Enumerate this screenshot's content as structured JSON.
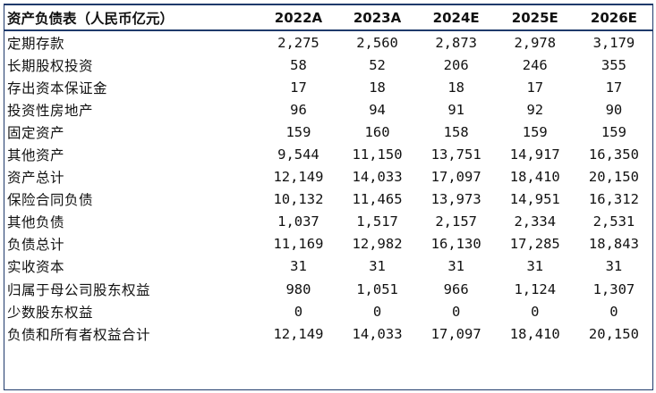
{
  "table": {
    "title": "资产负债表（人民币亿元）",
    "years": [
      "2022A",
      "2023A",
      "2024E",
      "2025E",
      "2026E"
    ],
    "rows": [
      {
        "label": "定期存款",
        "values": [
          "2,275",
          "2,560",
          "2,873",
          "2,978",
          "3,179"
        ]
      },
      {
        "label": "长期股权投资",
        "values": [
          "58",
          "52",
          "206",
          "246",
          "355"
        ]
      },
      {
        "label": "存出资本保证金",
        "values": [
          "17",
          "18",
          "18",
          "17",
          "17"
        ]
      },
      {
        "label": "投资性房地产",
        "values": [
          "96",
          "94",
          "91",
          "92",
          "90"
        ]
      },
      {
        "label": "固定资产",
        "values": [
          "159",
          "160",
          "158",
          "159",
          "159"
        ]
      },
      {
        "label": "其他资产",
        "values": [
          "9,544",
          "11,150",
          "13,751",
          "14,917",
          "16,350"
        ]
      },
      {
        "label": "资产总计",
        "values": [
          "12,149",
          "14,033",
          "17,097",
          "18,410",
          "20,150"
        ]
      },
      {
        "label": "保险合同负债",
        "values": [
          "10,132",
          "11,465",
          "13,973",
          "14,951",
          "16,312"
        ]
      },
      {
        "label": "其他负债",
        "values": [
          "1,037",
          "1,517",
          "2,157",
          "2,334",
          "2,531"
        ]
      },
      {
        "label": "负债总计",
        "values": [
          "11,169",
          "12,982",
          "16,130",
          "17,285",
          "18,843"
        ]
      },
      {
        "label": "实收资本",
        "values": [
          "31",
          "31",
          "31",
          "31",
          "31"
        ]
      },
      {
        "label": "归属于母公司股东权益",
        "values": [
          "980",
          "1,051",
          "966",
          "1,124",
          "1,307"
        ]
      },
      {
        "label": "少数股东权益",
        "values": [
          "0",
          "0",
          "0",
          "0",
          "0"
        ]
      },
      {
        "label": "负债和所有者权益合计",
        "values": [
          "12,149",
          "14,033",
          "17,097",
          "18,410",
          "20,150"
        ]
      }
    ]
  },
  "colors": {
    "border": "#1f3a6b",
    "text": "#111111"
  }
}
